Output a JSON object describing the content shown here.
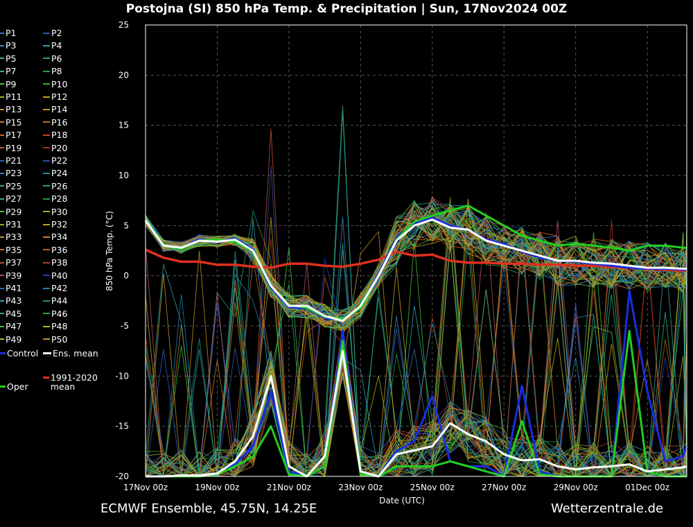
{
  "title": "Postojna  (SI)  850 hPa Temp. & Precipitation | Sun, 17Nov2024 00Z",
  "footer": {
    "left": "ECMWF Ensemble, 45.75N, 14.25E",
    "right": "Wetterzentrale.de"
  },
  "legend": {
    "members": [
      "P1",
      "P2",
      "P3",
      "P4",
      "P5",
      "P6",
      "P7",
      "P8",
      "P9",
      "P10",
      "P11",
      "P12",
      "P13",
      "P14",
      "P15",
      "P16",
      "P17",
      "P18",
      "P19",
      "P20",
      "P21",
      "P22",
      "P23",
      "P24",
      "P25",
      "P26",
      "P27",
      "P28",
      "P29",
      "P30",
      "P31",
      "P32",
      "P33",
      "P34",
      "P35",
      "P36",
      "P37",
      "P38",
      "P39",
      "P40",
      "P41",
      "P42",
      "P43",
      "P44",
      "P45",
      "P46",
      "P47",
      "P48",
      "P49",
      "P50"
    ],
    "member_colors": [
      "#4a6fd8",
      "#2a5cb0",
      "#3a8ac8",
      "#2aa0b0",
      "#3ab0a0",
      "#20a080",
      "#30b070",
      "#20a040",
      "#40c030",
      "#30b020",
      "#b0b020",
      "#c0a020",
      "#c09020",
      "#d09020",
      "#d08020",
      "#c07020",
      "#d06020",
      "#c04020",
      "#c05040",
      "#b03020",
      "#3060c0",
      "#2050b0",
      "#3080c0",
      "#2090b0",
      "#30a0a0",
      "#20a070",
      "#30b060",
      "#20a040",
      "#60c040",
      "#a0b020",
      "#b0a020",
      "#c0a020",
      "#c09030",
      "#d08020",
      "#d07020",
      "#c06020",
      "#c05030",
      "#b04020",
      "#b05060",
      "#2040c0",
      "#3070c0",
      "#2080b0",
      "#30a0b0",
      "#209080",
      "#30b070",
      "#30a040",
      "#40c040",
      "#a0c020",
      "#c0b020",
      "#c09020"
    ],
    "control": "Control",
    "control_color": "#1a2ee0",
    "ens_mean": "Ens. mean",
    "ens_mean_color": "#ffffff",
    "clim_mean": "1991-2020 mean",
    "clim_mean_color": "#e03020",
    "oper": "Oper",
    "oper_color": "#20d020"
  },
  "chart_data": {
    "type": "line",
    "title": "Postojna  (SI)  850 hPa Temp. & Precipitation | Sun, 17Nov2024 00Z",
    "xlabel": "Date (UTC)",
    "ylabel": "850 hPa Temp. (°C)",
    "ylim": [
      -20,
      25
    ],
    "yticks": [
      -20,
      -15,
      -10,
      -5,
      0,
      5,
      10,
      15,
      20,
      25
    ],
    "xticks": [
      "17Nov 00z",
      "19Nov 00z",
      "21Nov 00z",
      "23Nov 00z",
      "25Nov 00z",
      "27Nov 00z",
      "29Nov 00z",
      "01Dec 00z"
    ],
    "xlim_days": [
      0,
      15.1
    ],
    "grid": true,
    "x_days_from_start": [
      0,
      0.5,
      1,
      1.5,
      2,
      2.5,
      3,
      3.5,
      4,
      4.5,
      5,
      5.5,
      6,
      6.5,
      7,
      7.5,
      8,
      8.5,
      9,
      9.5,
      10,
      10.5,
      11,
      11.5,
      12,
      12.5,
      13,
      13.5,
      14,
      14.5,
      15,
      15.1
    ],
    "series": [
      {
        "name": "Ens. mean",
        "kind": "temperature",
        "values": [
          5.5,
          3,
          2.8,
          3.5,
          3.4,
          3.6,
          2.5,
          -1,
          -3,
          -3,
          -4,
          -4.5,
          -3,
          0,
          3.5,
          5,
          5.6,
          4.8,
          4.6,
          3.5,
          3,
          2.5,
          2,
          1.5,
          1.5,
          1.3,
          1.2,
          1,
          0.8,
          0.8,
          0.7,
          0.7
        ]
      },
      {
        "name": "Control",
        "kind": "temperature",
        "values": [
          5.5,
          3,
          2.8,
          3.6,
          3.4,
          3.7,
          2.6,
          -1.2,
          -3.1,
          -3.3,
          -4.2,
          -4.4,
          -3.1,
          0.2,
          3.8,
          5.2,
          5.8,
          5,
          4.6,
          3.6,
          3.2,
          2.4,
          1.8,
          1.5,
          1.4,
          1.2,
          1,
          0.8,
          0.7,
          0.7,
          0.6,
          0.6
        ]
      },
      {
        "name": "Oper",
        "kind": "temperature",
        "values": [
          5.6,
          3.1,
          2.7,
          3.5,
          3.6,
          3.4,
          2.4,
          -1,
          -2.9,
          -3.2,
          -4.1,
          -4.3,
          -3.2,
          0,
          3.6,
          5.4,
          6,
          6.5,
          7,
          6,
          5,
          4,
          3.5,
          3,
          3.2,
          3,
          2.8,
          2.5,
          3,
          3,
          2.8,
          2.8
        ]
      },
      {
        "name": "1991-2020 mean",
        "kind": "temperature",
        "values": [
          2.6,
          1.8,
          1.4,
          1.4,
          1.1,
          1.1,
          0.9,
          0.8,
          1.2,
          1.2,
          1,
          0.9,
          1.2,
          1.6,
          2.4,
          2,
          2.1,
          1.5,
          1.3,
          1.3,
          1.2,
          1.2,
          1.1,
          1.1,
          1,
          1,
          0.9,
          0.8,
          0.7,
          0.6,
          0.5,
          0.5
        ]
      },
      {
        "name": "Ens. mean",
        "kind": "precipitation",
        "values": [
          -20,
          -20,
          -19.9,
          -19.9,
          -19.7,
          -18.5,
          -16,
          -10,
          -19,
          -20,
          -18,
          -7.5,
          -19.5,
          -20,
          -17.8,
          -17.4,
          -17,
          -14.7,
          -15.8,
          -16.5,
          -17.8,
          -18.4,
          -18.3,
          -19,
          -19.3,
          -19.1,
          -19,
          -18.8,
          -19.5,
          -19.3,
          -19.1,
          -19
        ]
      },
      {
        "name": "Control",
        "kind": "precipitation",
        "values": [
          -20,
          -20,
          -20,
          -19.9,
          -19.8,
          -18.8,
          -17,
          -11.5,
          -19.5,
          -20,
          -19,
          -5.5,
          -19.8,
          -20,
          -17.5,
          -16.5,
          -12,
          -18.5,
          -19,
          -19,
          -20,
          -11,
          -19.5,
          -20,
          -20,
          -20,
          -20,
          -1.5,
          -11.5,
          -18.5,
          -18,
          -17
        ]
      },
      {
        "name": "Oper",
        "kind": "precipitation",
        "values": [
          -20,
          -20,
          -20,
          -20,
          -19.8,
          -19,
          -18,
          -15,
          -19.8,
          -20,
          -19,
          -6.5,
          -19.8,
          -20,
          -19,
          -19,
          -19,
          -18.5,
          -19,
          -19.5,
          -20,
          -14.5,
          -19.8,
          -20,
          -20,
          -20,
          -20,
          -5.5,
          -19.5,
          -20,
          -20,
          -20
        ]
      }
    ]
  }
}
